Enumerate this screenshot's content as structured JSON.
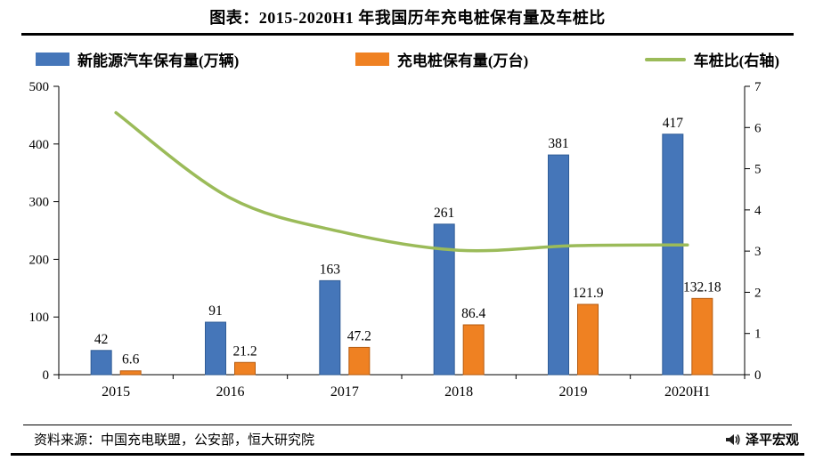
{
  "title": "图表：2015-2020H1 年我国历年充电桩保有量及车桩比",
  "legend": [
    {
      "label": "新能源汽车保有量(万辆)",
      "color": "#4576b9",
      "type": "bar"
    },
    {
      "label": "充电桩保有量(万台)",
      "color": "#ef8122",
      "type": "bar"
    },
    {
      "label": "车桩比(右轴)",
      "color": "#9bbb59",
      "type": "line"
    }
  ],
  "chart_data": {
    "type": "bar",
    "subtype": "bar+line combo",
    "title": "图表：2015-2020H1 年我国历年充电桩保有量及车桩比",
    "categories": [
      "2015",
      "2016",
      "2017",
      "2018",
      "2019",
      "2020H1"
    ],
    "series": [
      {
        "name": "新能源汽车保有量(万辆)",
        "type": "bar",
        "axis": "left",
        "color": "#4576b9",
        "stroke": "#2f5c96",
        "values": [
          42,
          91,
          163,
          261,
          381,
          417
        ]
      },
      {
        "name": "充电桩保有量(万台)",
        "type": "bar",
        "axis": "left",
        "color": "#ef8122",
        "stroke": "#b55a0e",
        "values": [
          6.6,
          21.2,
          47.2,
          86.4,
          121.9,
          132.18
        ]
      },
      {
        "name": "车桩比(右轴)",
        "type": "line",
        "axis": "right",
        "color": "#9bbb59",
        "values": [
          6.36,
          4.29,
          3.45,
          3.02,
          3.13,
          3.15
        ]
      }
    ],
    "left_axis": {
      "min": 0,
      "max": 500,
      "step": 100
    },
    "right_axis": {
      "min": 0,
      "max": 7,
      "step": 1
    },
    "grid": false,
    "legend_position": "top",
    "data_labels": true
  },
  "footer": {
    "source": "资料来源：中国充电联盟，公安部，恒大研究院",
    "brand": "泽平宏观"
  }
}
